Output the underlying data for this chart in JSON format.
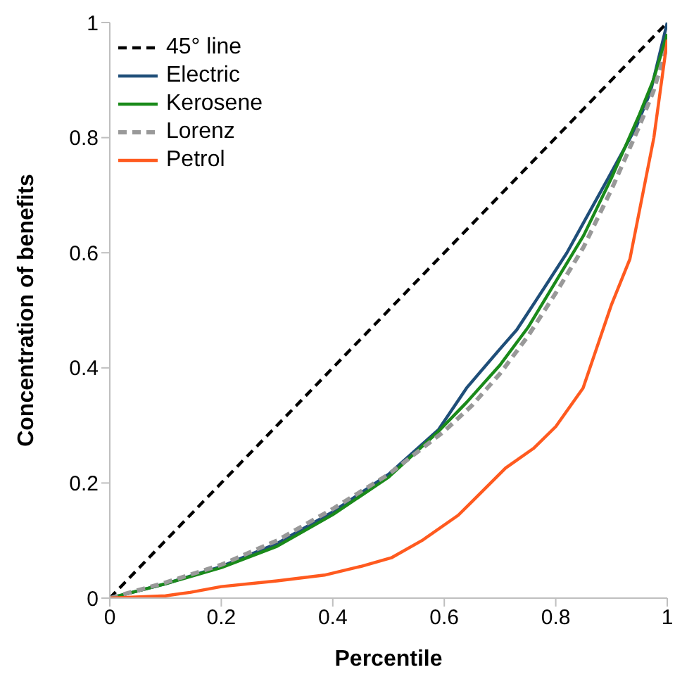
{
  "chart_data": {
    "type": "line",
    "xlabel": "Percentile",
    "ylabel": "Concentration of benefits",
    "xlim": [
      0,
      1
    ],
    "ylim": [
      0,
      1
    ],
    "xticks": [
      0,
      0.2,
      0.4,
      0.6,
      0.8,
      1
    ],
    "yticks": [
      0,
      0.2,
      0.4,
      0.6,
      0.8,
      1
    ],
    "legend": "top left",
    "marker": "none",
    "series": [
      {
        "name": "45° line",
        "color": "#000000",
        "line_style": "dashed",
        "x": [
          0,
          1
        ],
        "values": [
          0,
          1
        ]
      },
      {
        "name": "Electric",
        "color": "#1f4e79",
        "line_style": "solid",
        "x": [
          0,
          0.1,
          0.2,
          0.3,
          0.4,
          0.5,
          0.59,
          0.64,
          0.7,
          0.73,
          0.78,
          0.82,
          0.86,
          0.9,
          0.945,
          0.97,
          1
        ],
        "values": [
          0,
          0.025,
          0.055,
          0.095,
          0.15,
          0.215,
          0.293,
          0.365,
          0.433,
          0.466,
          0.54,
          0.6,
          0.67,
          0.74,
          0.82,
          0.88,
          1
        ]
      },
      {
        "name": "Kerosene",
        "color": "#1a8a1a",
        "line_style": "solid",
        "x": [
          0,
          0.1,
          0.2,
          0.3,
          0.4,
          0.5,
          0.59,
          0.64,
          0.7,
          0.75,
          0.8,
          0.85,
          0.9,
          0.95,
          0.975,
          1
        ],
        "values": [
          0,
          0.025,
          0.053,
          0.09,
          0.145,
          0.21,
          0.29,
          0.34,
          0.405,
          0.47,
          0.55,
          0.63,
          0.73,
          0.84,
          0.9,
          0.98
        ]
      },
      {
        "name": "Lorenz",
        "color": "#999999",
        "line_style": "dashed",
        "x": [
          0,
          0.1,
          0.2,
          0.3,
          0.4,
          0.5,
          0.6,
          0.65,
          0.7,
          0.75,
          0.8,
          0.85,
          0.9,
          0.95,
          0.975,
          1
        ],
        "values": [
          0,
          0.027,
          0.058,
          0.1,
          0.155,
          0.215,
          0.29,
          0.335,
          0.39,
          0.455,
          0.53,
          0.61,
          0.71,
          0.82,
          0.88,
          0.96
        ]
      },
      {
        "name": "Petrol",
        "color": "#ff5a1f",
        "line_style": "solid",
        "x": [
          0,
          0.1,
          0.144,
          0.2,
          0.3,
          0.385,
          0.45,
          0.505,
          0.56,
          0.625,
          0.65,
          0.71,
          0.76,
          0.8,
          0.849,
          0.9,
          0.933,
          0.976,
          1
        ],
        "values": [
          0,
          0.004,
          0.01,
          0.02,
          0.03,
          0.04,
          0.055,
          0.07,
          0.1,
          0.144,
          0.168,
          0.226,
          0.26,
          0.298,
          0.365,
          0.51,
          0.589,
          0.8,
          0.97
        ]
      }
    ]
  }
}
